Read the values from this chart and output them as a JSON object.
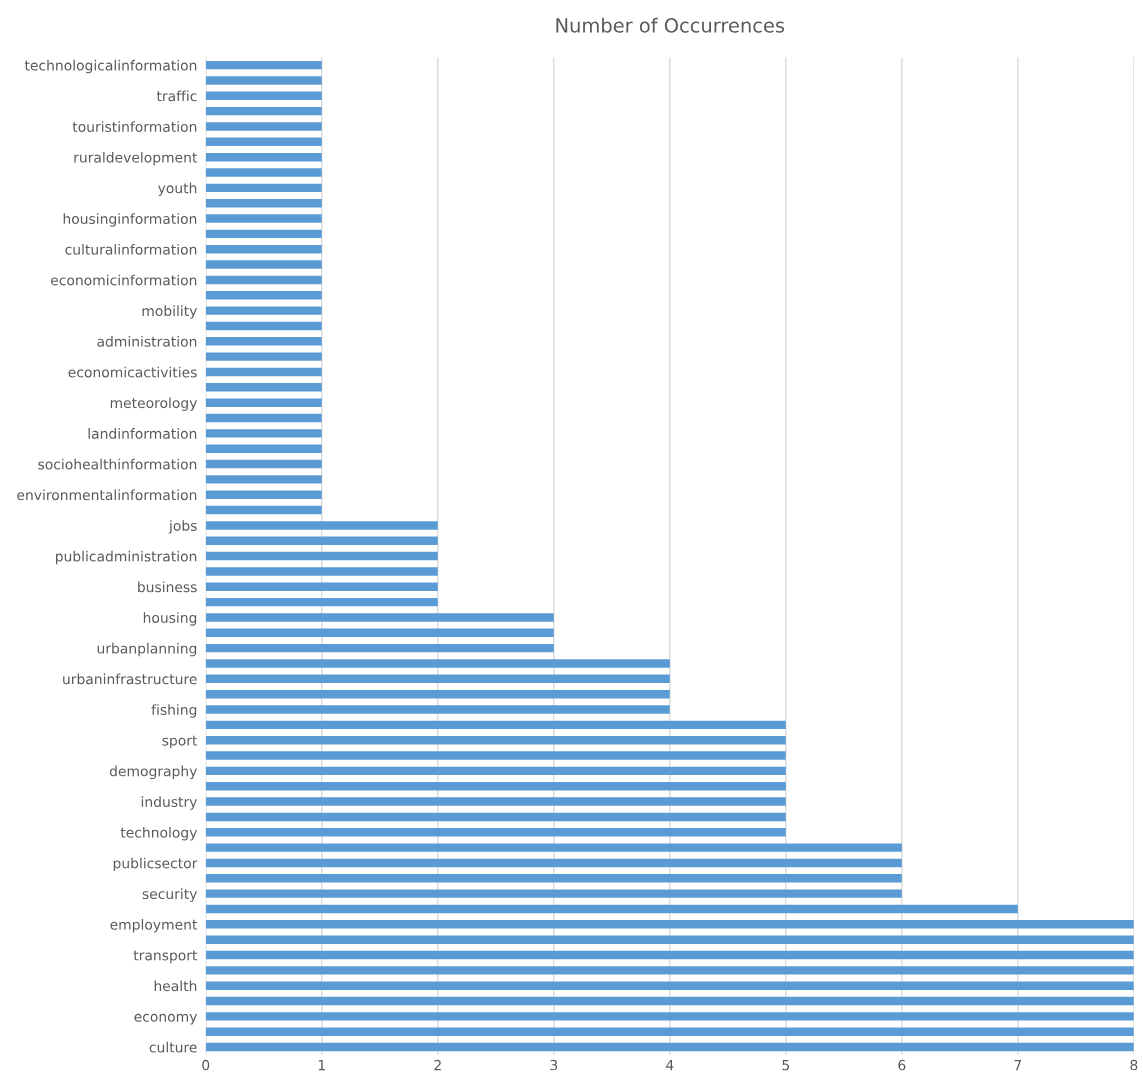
{
  "chart_data": {
    "type": "bar",
    "orientation": "horizontal",
    "title": "Number of Occurrences",
    "categories": [
      "technologicalinformation",
      null,
      "traffic",
      null,
      "touristinformation",
      null,
      "ruraldevelopment",
      null,
      "youth",
      null,
      "housinginformation",
      null,
      "culturalinformation",
      null,
      "economicinformation",
      null,
      "mobility",
      null,
      "administration",
      null,
      "economicactivities",
      null,
      "meteorology",
      null,
      "landinformation",
      null,
      "sociohealthinformation",
      null,
      "environmentalinformation",
      null,
      "jobs",
      null,
      "publicadministration",
      null,
      "business",
      null,
      "housing",
      null,
      "urbanplanning",
      null,
      "urbaninfrastructure",
      null,
      "fishing",
      null,
      "sport",
      null,
      "demography",
      null,
      "industry",
      null,
      "technology",
      null,
      "publicsector",
      null,
      "security",
      null,
      "employment",
      null,
      "transport",
      null,
      "health",
      null,
      "economy",
      null,
      "culture"
    ],
    "values": [
      1,
      1,
      1,
      1,
      1,
      1,
      1,
      1,
      1,
      1,
      1,
      1,
      1,
      1,
      1,
      1,
      1,
      1,
      1,
      1,
      1,
      1,
      1,
      1,
      1,
      1,
      1,
      1,
      1,
      1,
      2,
      2,
      2,
      2,
      2,
      2,
      3,
      3,
      3,
      4,
      4,
      4,
      4,
      5,
      5,
      5,
      5,
      5,
      5,
      5,
      5,
      6,
      6,
      6,
      6,
      7,
      8,
      8,
      8,
      8,
      8,
      8,
      8,
      8,
      8
    ],
    "color": "#5b9bd5",
    "xlim": [
      0,
      8
    ],
    "xticks": [
      0,
      1,
      2,
      3,
      4,
      5,
      6,
      7,
      8
    ],
    "grid": "x",
    "legend": false
  }
}
